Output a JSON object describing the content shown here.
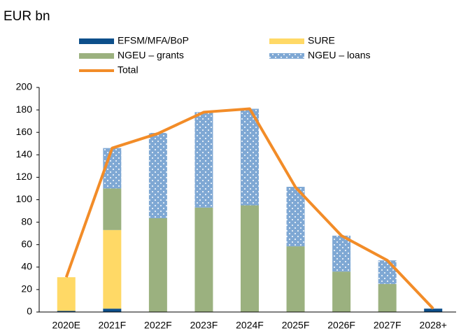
{
  "chart_data": {
    "type": "bar",
    "stacked": true,
    "subtitle": "EUR bn",
    "categories": [
      "2020E",
      "2021F",
      "2022F",
      "2023F",
      "2024F",
      "2025F",
      "2026F",
      "2027F",
      "2028+"
    ],
    "series": [
      {
        "name": "EFSM/MFA/BoP",
        "color": "#0d4f8b",
        "values": [
          1,
          3,
          0,
          0,
          0,
          0,
          0,
          0,
          3
        ]
      },
      {
        "name": "SURE",
        "color": "#ffd966",
        "values": [
          30,
          70,
          0,
          0,
          0,
          0,
          0,
          0,
          0
        ]
      },
      {
        "name": "NGEU – grants",
        "color": "#9bb17f",
        "values": [
          0,
          37,
          83.5,
          93,
          95,
          58.5,
          36,
          25,
          0
        ]
      },
      {
        "name": "NGEU – loans",
        "color": "#7fa8d4",
        "pattern": "dots",
        "values": [
          0,
          36,
          76,
          85,
          86,
          53,
          32,
          21,
          0
        ]
      },
      {
        "name": "Total",
        "color": "#f28c28",
        "type": "line",
        "values": [
          31,
          146,
          159,
          178,
          181,
          111,
          68,
          46,
          3
        ]
      }
    ],
    "ylim": [
      0,
      200
    ],
    "yticks": [
      0,
      20,
      40,
      60,
      80,
      100,
      120,
      140,
      160,
      180,
      200
    ],
    "grid": false,
    "legend": "top"
  }
}
